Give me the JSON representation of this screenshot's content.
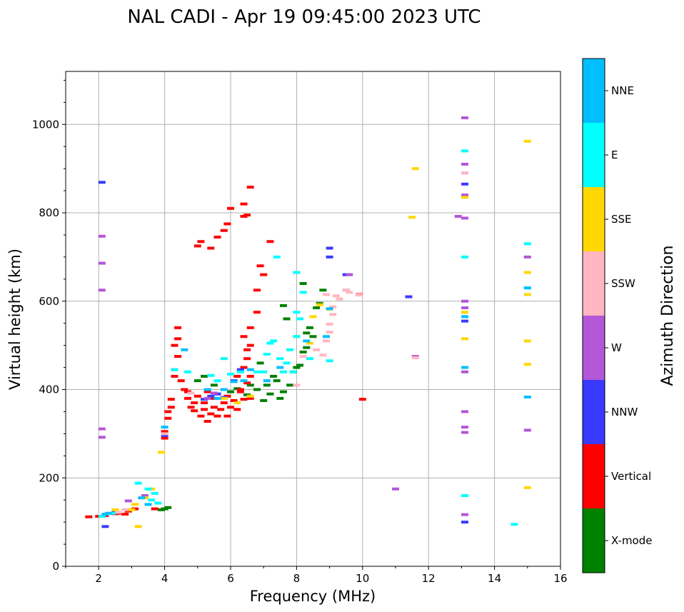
{
  "chart_data": {
    "type": "scatter",
    "title": "NAL CADI - Apr 19 09:45:00 2023 UTC",
    "xlabel": "Frequency (MHz)",
    "ylabel": "Virtual height (km)",
    "xlim": [
      1,
      16
    ],
    "ylim": [
      0,
      1120
    ],
    "xticks": [
      2,
      4,
      6,
      8,
      10,
      12,
      14,
      16
    ],
    "yticks": [
      0,
      200,
      400,
      600,
      800,
      1000
    ],
    "grid": true,
    "colorbar": {
      "title": "Azimuth Direction",
      "categories": [
        {
          "label": "X-mode",
          "color": "#008000"
        },
        {
          "label": "Vertical",
          "color": "#ff0000"
        },
        {
          "label": "NNW",
          "color": "#3a3aff"
        },
        {
          "label": "W",
          "color": "#b356d8"
        },
        {
          "label": "SSW",
          "color": "#ffb6c1"
        },
        {
          "label": "SSE",
          "color": "#ffd700"
        },
        {
          "label": "E",
          "color": "#00ffff"
        },
        {
          "label": "NNE",
          "color": "#00bfff"
        }
      ]
    },
    "series": [
      {
        "name": "X-mode",
        "points": [
          [
            3.9,
            128
          ],
          [
            4.0,
            130
          ],
          [
            4.1,
            133
          ],
          [
            5.0,
            420
          ],
          [
            5.2,
            430
          ],
          [
            5.5,
            410
          ],
          [
            6.0,
            395
          ],
          [
            6.2,
            402
          ],
          [
            6.5,
            388
          ],
          [
            7.0,
            375
          ],
          [
            7.2,
            390
          ],
          [
            7.5,
            380
          ],
          [
            7.6,
            395
          ],
          [
            7.8,
            410
          ],
          [
            7.9,
            440
          ],
          [
            8.0,
            450
          ],
          [
            8.1,
            455
          ],
          [
            8.2,
            485
          ],
          [
            8.3,
            495
          ],
          [
            8.3,
            528
          ],
          [
            8.4,
            540
          ],
          [
            8.5,
            520
          ],
          [
            8.6,
            585
          ],
          [
            8.7,
            595
          ],
          [
            8.8,
            625
          ],
          [
            8.2,
            640
          ],
          [
            7.6,
            590
          ],
          [
            7.7,
            560
          ],
          [
            7.3,
            430
          ],
          [
            7.1,
            410
          ],
          [
            6.9,
            460
          ],
          [
            6.8,
            400
          ],
          [
            7.4,
            420
          ],
          [
            6.6,
            410
          ]
        ]
      },
      {
        "name": "Vertical",
        "points": [
          [
            1.7,
            112
          ],
          [
            2.0,
            113
          ],
          [
            2.2,
            115
          ],
          [
            2.5,
            119
          ],
          [
            2.6,
            120
          ],
          [
            2.8,
            118
          ],
          [
            2.9,
            125
          ],
          [
            3.1,
            130
          ],
          [
            3.7,
            130
          ],
          [
            4.0,
            290
          ],
          [
            4.0,
            305
          ],
          [
            4.1,
            335
          ],
          [
            4.1,
            350
          ],
          [
            4.2,
            360
          ],
          [
            4.2,
            378
          ],
          [
            4.3,
            430
          ],
          [
            4.3,
            445
          ],
          [
            4.3,
            500
          ],
          [
            4.4,
            475
          ],
          [
            4.4,
            515
          ],
          [
            4.5,
            420
          ],
          [
            4.6,
            400
          ],
          [
            4.7,
            395
          ],
          [
            4.7,
            380
          ],
          [
            4.8,
            360
          ],
          [
            4.9,
            370
          ],
          [
            4.9,
            352
          ],
          [
            5.0,
            385
          ],
          [
            5.1,
            340
          ],
          [
            5.2,
            355
          ],
          [
            5.2,
            370
          ],
          [
            5.3,
            328
          ],
          [
            5.3,
            395
          ],
          [
            5.4,
            345
          ],
          [
            5.5,
            360
          ],
          [
            5.5,
            380
          ],
          [
            5.6,
            340
          ],
          [
            5.7,
            355
          ],
          [
            5.8,
            370
          ],
          [
            5.9,
            385
          ],
          [
            5.9,
            340
          ],
          [
            6.0,
            360
          ],
          [
            6.1,
            375
          ],
          [
            6.2,
            355
          ],
          [
            6.2,
            430
          ],
          [
            6.3,
            400
          ],
          [
            6.4,
            378
          ],
          [
            6.4,
            450
          ],
          [
            6.5,
            470
          ],
          [
            6.5,
            415
          ],
          [
            6.6,
            380
          ],
          [
            6.6,
            430
          ],
          [
            6.6,
            540
          ],
          [
            6.6,
            500
          ],
          [
            6.5,
            490
          ],
          [
            6.4,
            520
          ],
          [
            4.4,
            540
          ],
          [
            5.0,
            725
          ],
          [
            5.1,
            735
          ],
          [
            5.4,
            720
          ],
          [
            5.6,
            745
          ],
          [
            5.8,
            760
          ],
          [
            5.9,
            775
          ],
          [
            6.0,
            810
          ],
          [
            6.4,
            792
          ],
          [
            6.5,
            795
          ],
          [
            6.4,
            820
          ],
          [
            6.6,
            858
          ],
          [
            6.8,
            575
          ],
          [
            6.8,
            625
          ],
          [
            7.0,
            660
          ],
          [
            6.9,
            680
          ],
          [
            7.2,
            735
          ],
          [
            10.0,
            378
          ],
          [
            9.9,
            615
          ],
          [
            6.3,
            395
          ]
        ]
      },
      {
        "name": "NNW",
        "points": [
          [
            2.1,
            869
          ],
          [
            2.5,
            122
          ],
          [
            2.2,
            90
          ],
          [
            4.0,
            296
          ],
          [
            5.2,
            378
          ],
          [
            5.4,
            385
          ],
          [
            5.6,
            390
          ],
          [
            5.8,
            382
          ],
          [
            6.1,
            420
          ],
          [
            6.3,
            445
          ],
          [
            9.0,
            720
          ],
          [
            9.0,
            700
          ],
          [
            9.5,
            660
          ],
          [
            11.4,
            610
          ],
          [
            13.1,
            555
          ],
          [
            13.1,
            865
          ],
          [
            13.1,
            840
          ],
          [
            13.1,
            100
          ]
        ]
      },
      {
        "name": "W",
        "points": [
          [
            2.1,
            747
          ],
          [
            2.1,
            686
          ],
          [
            2.1,
            625
          ],
          [
            2.1,
            311
          ],
          [
            2.1,
            292
          ],
          [
            2.9,
            148
          ],
          [
            3.4,
            160
          ],
          [
            5.3,
            380
          ],
          [
            5.5,
            392
          ],
          [
            9.5,
            625
          ],
          [
            9.6,
            660
          ],
          [
            11.0,
            175
          ],
          [
            11.6,
            475
          ],
          [
            13.1,
            1015
          ],
          [
            13.1,
            910
          ],
          [
            13.1,
            890
          ],
          [
            13.1,
            840
          ],
          [
            13.1,
            600
          ],
          [
            13.1,
            585
          ],
          [
            13.1,
            440
          ],
          [
            13.1,
            350
          ],
          [
            13.1,
            315
          ],
          [
            13.1,
            303
          ],
          [
            13.1,
            117
          ],
          [
            12.9,
            792
          ],
          [
            13.1,
            788
          ],
          [
            15.0,
            700
          ],
          [
            15.0,
            308
          ]
        ]
      },
      {
        "name": "SSW",
        "points": [
          [
            2.6,
            122
          ],
          [
            2.8,
            128
          ],
          [
            4.0,
            300
          ],
          [
            4.8,
            392
          ],
          [
            8.0,
            410
          ],
          [
            8.2,
            475
          ],
          [
            8.6,
            490
          ],
          [
            8.8,
            478
          ],
          [
            8.9,
            510
          ],
          [
            9.0,
            530
          ],
          [
            9.0,
            548
          ],
          [
            9.1,
            570
          ],
          [
            8.9,
            615
          ],
          [
            9.2,
            612
          ],
          [
            9.3,
            605
          ],
          [
            9.1,
            587
          ],
          [
            9.5,
            625
          ],
          [
            9.6,
            620
          ],
          [
            9.9,
            614
          ],
          [
            11.6,
            472
          ],
          [
            13.1,
            890
          ]
        ]
      },
      {
        "name": "SSE",
        "points": [
          [
            2.5,
            128
          ],
          [
            3.0,
            128
          ],
          [
            3.1,
            140
          ],
          [
            3.4,
            155
          ],
          [
            3.6,
            175
          ],
          [
            3.2,
            90
          ],
          [
            3.9,
            258
          ],
          [
            5.8,
            380
          ],
          [
            6.2,
            370
          ],
          [
            6.6,
            385
          ],
          [
            8.0,
            520
          ],
          [
            8.4,
            505
          ],
          [
            8.5,
            565
          ],
          [
            8.7,
            592
          ],
          [
            9.0,
            582
          ],
          [
            11.5,
            790
          ],
          [
            11.6,
            900
          ],
          [
            13.1,
            835
          ],
          [
            13.1,
            575
          ],
          [
            13.1,
            515
          ],
          [
            15.0,
            962
          ],
          [
            15.0,
            665
          ],
          [
            15.0,
            615
          ],
          [
            15.0,
            510
          ],
          [
            15.0,
            457
          ],
          [
            15.0,
            178
          ]
        ]
      },
      {
        "name": "E",
        "points": [
          [
            2.1,
            113
          ],
          [
            2.4,
            120
          ],
          [
            3.2,
            188
          ],
          [
            3.5,
            175
          ],
          [
            3.6,
            150
          ],
          [
            3.7,
            165
          ],
          [
            3.8,
            143
          ],
          [
            4.3,
            445
          ],
          [
            4.7,
            440
          ],
          [
            5.4,
            432
          ],
          [
            5.6,
            420
          ],
          [
            5.8,
            470
          ],
          [
            6.0,
            435
          ],
          [
            6.3,
            440
          ],
          [
            6.8,
            440
          ],
          [
            7.0,
            440
          ],
          [
            7.1,
            480
          ],
          [
            7.2,
            505
          ],
          [
            7.3,
            510
          ],
          [
            7.4,
            700
          ],
          [
            7.5,
            470
          ],
          [
            7.6,
            440
          ],
          [
            7.7,
            460
          ],
          [
            7.8,
            490
          ],
          [
            7.9,
            440
          ],
          [
            8.0,
            520
          ],
          [
            8.0,
            575
          ],
          [
            8.1,
            560
          ],
          [
            8.0,
            665
          ],
          [
            8.2,
            620
          ],
          [
            8.4,
            470
          ],
          [
            9.0,
            465
          ],
          [
            13.1,
            940
          ],
          [
            13.1,
            700
          ],
          [
            13.1,
            160
          ],
          [
            14.6,
            95
          ],
          [
            15.0,
            730
          ],
          [
            15.0,
            630
          ]
        ]
      },
      {
        "name": "NNE",
        "points": [
          [
            2.2,
            118
          ],
          [
            2.3,
            120
          ],
          [
            3.3,
            155
          ],
          [
            3.5,
            140
          ],
          [
            4.0,
            315
          ],
          [
            4.6,
            490
          ],
          [
            5.3,
            400
          ],
          [
            5.6,
            380
          ],
          [
            5.8,
            400
          ],
          [
            6.1,
            418
          ],
          [
            6.4,
            420
          ],
          [
            6.6,
            445
          ],
          [
            7.1,
            420
          ],
          [
            7.5,
            450
          ],
          [
            8.3,
            510
          ],
          [
            8.9,
            520
          ],
          [
            9.0,
            583
          ],
          [
            13.1,
            450
          ],
          [
            13.1,
            565
          ],
          [
            15.0,
            383
          ],
          [
            15.0,
            630
          ]
        ]
      }
    ]
  }
}
